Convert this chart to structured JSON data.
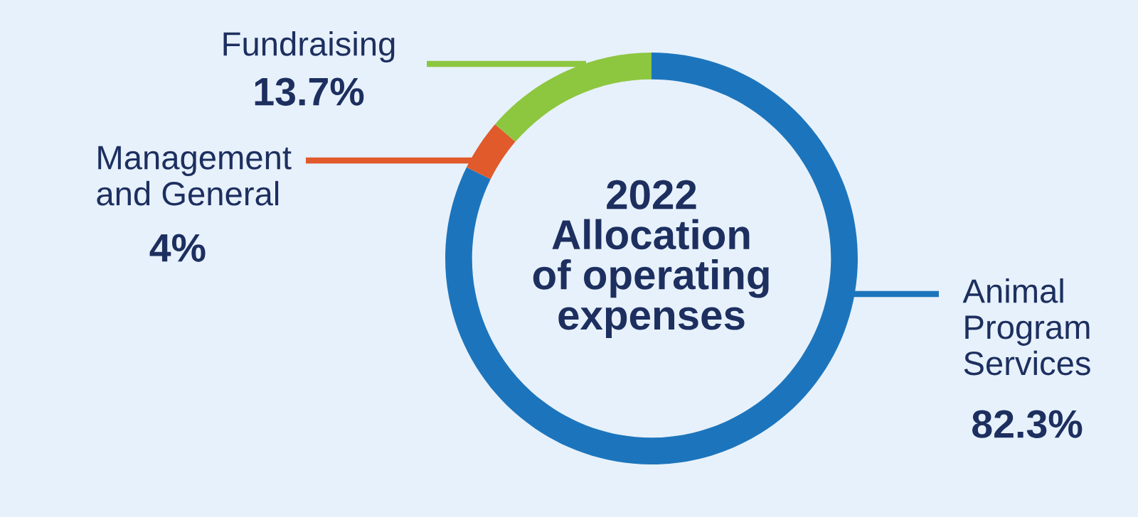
{
  "chart_data": {
    "type": "donut",
    "title": "2022\nAllocation\nof operating\nexpenses",
    "categories": [
      "Animal\nProgram\nServices",
      "Management\nand General",
      "Fundraising"
    ],
    "values": [
      82.3,
      4,
      13.7
    ],
    "value_labels": [
      "82.3%",
      "4%",
      "13.7%"
    ],
    "colors": [
      "#1c75bc",
      "#e05a2b",
      "#8dc63f"
    ],
    "legend": false
  }
}
